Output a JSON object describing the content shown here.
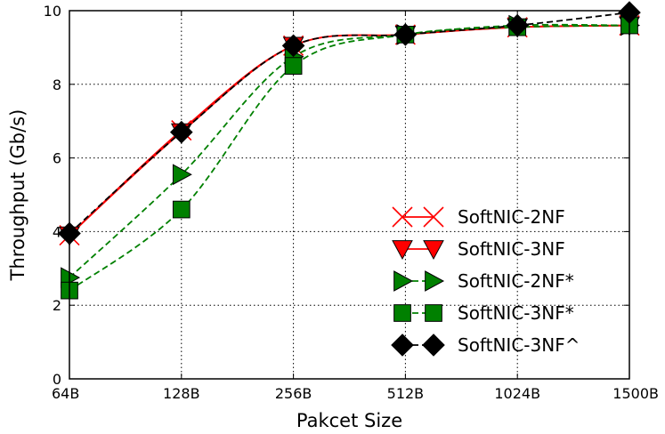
{
  "chart_data": {
    "type": "line",
    "title": "",
    "xlabel": "Pakcet Size",
    "ylabel": "Throughput (Gb/s)",
    "categories": [
      "64B",
      "128B",
      "256B",
      "512B",
      "1024B",
      "1500B"
    ],
    "ylim": [
      0,
      10
    ],
    "yticks": [
      0,
      2,
      4,
      6,
      8,
      10
    ],
    "grid": true,
    "legend_position": "bottom-right",
    "series": [
      {
        "name": "SoftNIC-2NF",
        "values": [
          3.9,
          6.75,
          9.05,
          9.35,
          9.55,
          9.6
        ],
        "color": "#ff0000",
        "linestyle": "solid",
        "marker": "x"
      },
      {
        "name": "SoftNIC-3NF",
        "values": [
          3.9,
          6.7,
          9.05,
          9.35,
          9.55,
          9.6
        ],
        "color": "#ff0000",
        "linestyle": "solid",
        "marker": "triangle-down"
      },
      {
        "name": "SoftNIC-2NF*",
        "values": [
          2.75,
          5.55,
          8.75,
          9.35,
          9.6,
          9.6
        ],
        "color": "#008000",
        "linestyle": "dashed",
        "marker": "triangle-right"
      },
      {
        "name": "SoftNIC-3NF*",
        "values": [
          2.4,
          4.6,
          8.5,
          9.35,
          9.55,
          9.6
        ],
        "color": "#008000",
        "linestyle": "dashed",
        "marker": "square"
      },
      {
        "name": "SoftNIC-3NF^",
        "values": [
          3.95,
          6.7,
          9.05,
          9.35,
          9.6,
          9.95
        ],
        "color": "#000000",
        "linestyle": "dashed",
        "marker": "diamond"
      }
    ]
  }
}
